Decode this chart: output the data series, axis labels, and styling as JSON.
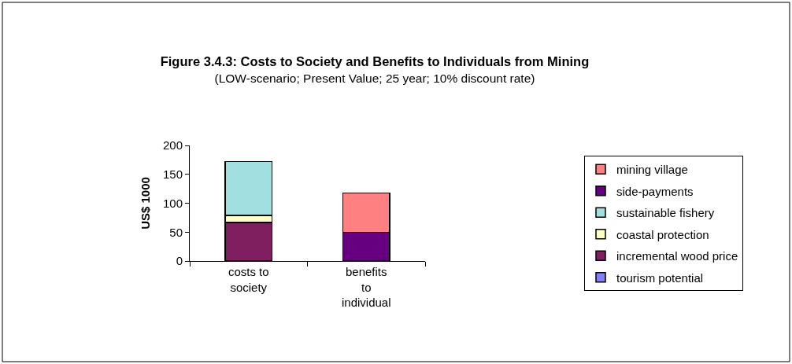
{
  "chart_data": {
    "type": "bar",
    "stacked": true,
    "title": "Figure 3.4.3: Costs to Society and Benefits to Individuals from Mining",
    "subtitle": "(LOW-scenario; Present Value; 25 year; 10% discount rate)",
    "ylabel": "US$ 1000",
    "categories": [
      "costs to society",
      "benefits to individual"
    ],
    "series": [
      {
        "name": "tourism potential",
        "color": "#8080ff",
        "values": [
          null,
          null
        ]
      },
      {
        "name": "incremental wood price",
        "color": "#801f5f",
        "values": [
          67,
          null
        ]
      },
      {
        "name": "coastal protection",
        "color": "#ffffc0",
        "values": [
          12,
          null
        ]
      },
      {
        "name": "sustainable fishery",
        "color": "#a0e0e0",
        "values": [
          93,
          null
        ]
      },
      {
        "name": "side-payments",
        "color": "#660080",
        "values": [
          null,
          50
        ]
      },
      {
        "name": "mining village",
        "color": "#ff8080",
        "values": [
          null,
          68
        ]
      }
    ],
    "ylim": [
      0,
      200
    ],
    "yticks": [
      0,
      50,
      100,
      150,
      200
    ],
    "grid": false,
    "legend": "right"
  }
}
